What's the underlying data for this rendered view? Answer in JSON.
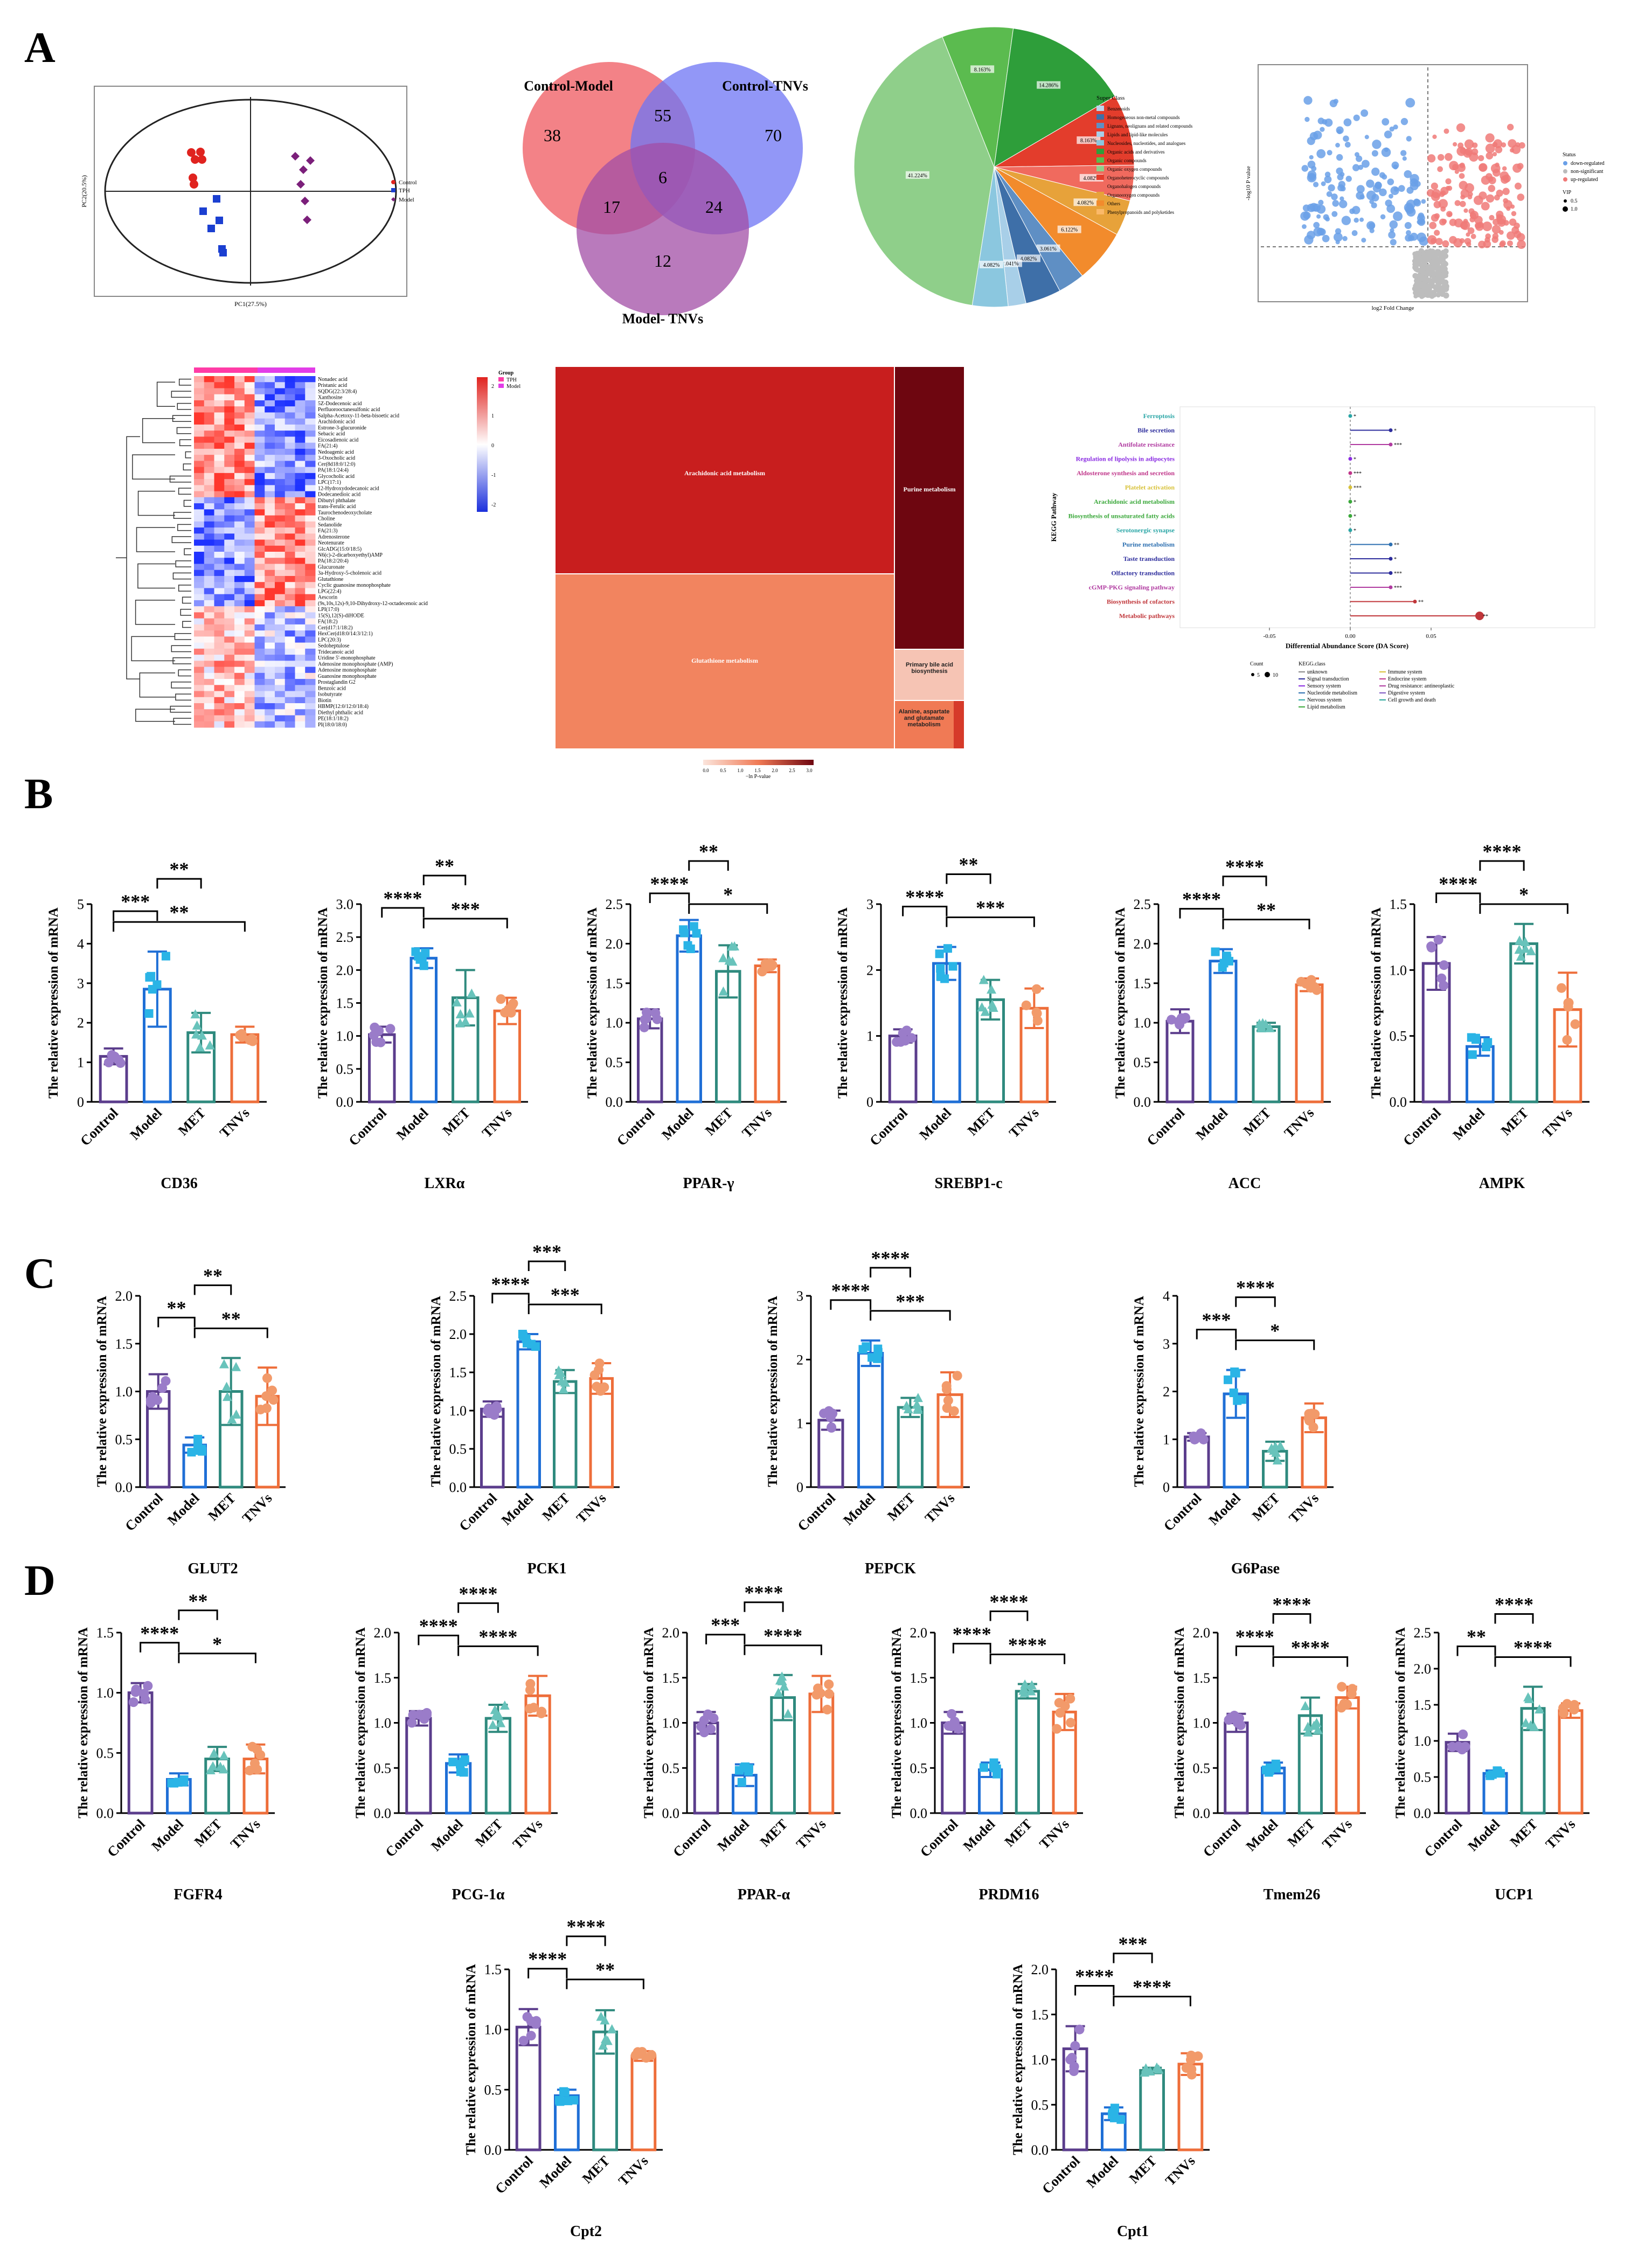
{
  "panel_letters": [
    "A",
    "B",
    "C",
    "D"
  ],
  "colors": {
    "Control": "#5b3d8c",
    "Model": "#1f6fd6",
    "MET": "#2f8a7e",
    "TNVs": "#ee6e3a",
    "Control_pt": "#9a7cc9",
    "Model_pt": "#2ab4e6",
    "MET_pt": "#68c3bb",
    "TNVs_pt": "#f29a6a"
  },
  "venn": {
    "labels": {
      "a": "Control-Model",
      "b": "Control-TNVs",
      "c": "Model- TNVs"
    },
    "counts": {
      "a_only": "38",
      "ab": "55",
      "b_only": "70",
      "ac": "17",
      "abc": "6",
      "bc": "24",
      "c_only": "12"
    }
  },
  "pca": {
    "xlabel": "PC1(27.5%)",
    "ylabel": "PC2(20.5%)",
    "legend": [
      "Control",
      "TPH",
      "Model"
    ]
  },
  "pie": {
    "legend_title": "Super Class",
    "labels": [
      "41.224%",
      "8.163%",
      "14.286%",
      "8.163%",
      "4.082%",
      "4.082%",
      "6.122%",
      "3.061%",
      "4.082%",
      "2.041%",
      "4.082%"
    ],
    "classes": [
      "Benzenoids",
      "Homogeneous non-metal compounds",
      "Lignans, neolignans and related compounds",
      "Lipids and lipid-like molecules",
      "Nucleosides, nucleotides, and analogues",
      "Organic acids and derivatives",
      "Organic compounds",
      "Organic oxygen compounds",
      "Organoheterocyclic compounds",
      "Organohalogen compounds",
      "Organooxygen compounds",
      "Others",
      "Phenylpropanoids and polyketides"
    ]
  },
  "volcano": {
    "xlabel": "log2 Fold Change",
    "ylabel": "-log10 P value",
    "legend_title": "Status",
    "legend": [
      "down-regulated",
      "non-significant",
      "up-regulated"
    ],
    "vip_title": "VIP",
    "vip": [
      "0.5",
      "1.0"
    ]
  },
  "heatmap": {
    "legend_title": "Group",
    "group_legend": [
      "TPH",
      "Model"
    ],
    "scale_ticks": [
      "2",
      "1",
      "0",
      "-1",
      "-2"
    ],
    "rows": [
      "Nonadec acid",
      "Pristanic acid",
      "SQDG(22:3/28:4)",
      "Xanthosine",
      "5Z-Dodecenoic acid",
      "Perfluorooctanesulfonic acid",
      "Salpha-Acetoxy-11-beta-bisoetic acid",
      "Arachidonic acid",
      "Estrone-3-glucuronide",
      "Sebacic acid",
      "Eicosadienoic acid",
      "FA(21:4)",
      "Nedoagenic acid",
      "3-Oxocholic acid",
      "Cer(8d18:0/12:0)",
      "PA(18:1/24:4)",
      "Glycocholic acid",
      "LPC(17:1)",
      "12-Hydroxydodecanoic acid",
      "Dodecanedioic acid",
      "Dibutyl phthalate",
      "trans-Ferulic acid",
      "Taurochenodeoxycholate",
      "Choline",
      "Sedanolide",
      "FA(21:3)",
      "Adrenosterone",
      "Neotenurate",
      "GlcADG(15:0/18:5)",
      "N6(c)-2-dicarboxyethyl)AMP",
      "PA(18:2/20:4)",
      "Glucuronate",
      "3a-Hydroxy-5-cholenoic acid",
      "Glutathione",
      "Cyclic guanosine monophosphate",
      "LPG(22:4)",
      "Aescorin",
      "(9s,10s,12s)-9,10-Dihydroxy-12-octadecenoic acid",
      "LPI(17:0)",
      "15(S),12(S)-diHODE",
      "FA(18:2)",
      "Cer(d17:1/18:2)",
      "HexCer(d18:0/14:3/12:1)",
      "LPC(20:3)",
      "Sedoheptulose",
      "Tridecanoic acid",
      "Uridine 5'-monophosphate",
      "Adenosine monophosphate (AMP)",
      "Adenosine monophosphate",
      "Guanosine monophosphate",
      "Prostaglandin G2",
      "Benzoic acid",
      "Isobutyrate",
      "Biotin",
      "HBMP(12:0/12:0/18:4)",
      "Diethyl phthalic acid",
      "PE(18:1/18:2)",
      "PI(18:0/18:0)"
    ]
  },
  "treemap": {
    "cells": [
      "Arachidonic acid metabolism",
      "Purine metabolism",
      "Glutathione metabolism",
      "Primary bile acid biosynthesis",
      "Alanine, aspartate and glutamate metabolism"
    ],
    "scale_ticks": [
      "0.0",
      "0.5",
      "1.0",
      "1.5",
      "2.0",
      "2.5",
      "3.0"
    ],
    "scale_label": "−ln P-value"
  },
  "kegg": {
    "ylabel": "KEGG Pathway",
    "xlabel": "Differential Abundance Score (DA Score)",
    "xticks": [
      "-0.05",
      "0.00",
      "0.05"
    ],
    "pathways": [
      {
        "name": "Ferroptosis",
        "color": "#2aa6a6",
        "da": 0.0,
        "sig": "*"
      },
      {
        "name": "Bile secretion",
        "color": "#2c2c9c",
        "da": 0.025,
        "sig": "*"
      },
      {
        "name": "Antifolate resistance",
        "color": "#b03aa0",
        "da": 0.025,
        "sig": "***"
      },
      {
        "name": "Regulation of lipolysis in adipocytes",
        "color": "#8a2be2",
        "da": 0.0,
        "sig": "*"
      },
      {
        "name": "Aldosterone synthesis and secretion",
        "color": "#c0368a",
        "da": 0.0,
        "sig": "***"
      },
      {
        "name": "Platelet activation",
        "color": "#d8c239",
        "da": 0.0,
        "sig": "***"
      },
      {
        "name": "Arachidonic acid metabolism",
        "color": "#3aa83a",
        "da": 0.0,
        "sig": "*"
      },
      {
        "name": "Biosynthesis of unsaturated fatty acids",
        "color": "#3aa83a",
        "da": 0.0,
        "sig": "*"
      },
      {
        "name": "Serotonergic synapse",
        "color": "#2aa6a6",
        "da": 0.0,
        "sig": "*"
      },
      {
        "name": "Purine metabolism",
        "color": "#2c6fb0",
        "da": 0.025,
        "sig": "**"
      },
      {
        "name": "Taste transduction",
        "color": "#2c2c9c",
        "da": 0.025,
        "sig": "*"
      },
      {
        "name": "Olfactory transduction",
        "color": "#2c2c9c",
        "da": 0.025,
        "sig": "***"
      },
      {
        "name": "cGMP-PKG signaling pathway",
        "color": "#b03aa0",
        "da": 0.025,
        "sig": "***"
      },
      {
        "name": "Biosynthesis of cofactors",
        "color": "#c0363a",
        "da": 0.04,
        "sig": "**"
      },
      {
        "name": "Metabolic pathways",
        "color": "#c0363a",
        "da": 0.08,
        "sig": "**"
      }
    ],
    "count_title": "Count",
    "count_values": [
      "5",
      "10"
    ],
    "class_title": "KEGG.class",
    "classes": [
      "unknown",
      "Signal transduction",
      "Sensory system",
      "Nucleotide metabolism",
      "Nervous system",
      "Lipid metabolism",
      "Immune system",
      "Endocrine system",
      "Drug resistance: antineoplastic",
      "Digestive system",
      "Cell growth and death"
    ]
  },
  "bar_ylabel": "The relative expression of mRNA",
  "chart_data": [
    {
      "type": "bar",
      "panel": "B",
      "title": "CD36",
      "categories": [
        "Control",
        "Model",
        "MET",
        "TNVs"
      ],
      "values": [
        1.15,
        2.85,
        1.75,
        1.7
      ],
      "errors": [
        0.2,
        0.95,
        0.5,
        0.2
      ],
      "ylim": [
        0,
        5
      ],
      "yticks": [
        0,
        1,
        2,
        3,
        4,
        5
      ],
      "sig": [
        {
          "a": 0,
          "b": 1,
          "label": "***"
        },
        {
          "a": 1,
          "b": 2,
          "label": "**"
        },
        {
          "a": 0,
          "b": 3,
          "label": "**"
        }
      ]
    },
    {
      "type": "bar",
      "panel": "B",
      "title": "LXRα",
      "categories": [
        "Control",
        "Model",
        "MET",
        "TNVs"
      ],
      "values": [
        1.02,
        2.18,
        1.58,
        1.38
      ],
      "errors": [
        0.12,
        0.15,
        0.42,
        0.2
      ],
      "ylim": [
        0,
        3.0
      ],
      "yticks": [
        0,
        0.5,
        1.0,
        1.5,
        2.0,
        2.5,
        3.0
      ],
      "sig": [
        {
          "a": 0,
          "b": 1,
          "label": "****"
        },
        {
          "a": 1,
          "b": 2,
          "label": "**"
        },
        {
          "a": 1,
          "b": 3,
          "label": "***"
        }
      ]
    },
    {
      "type": "bar",
      "panel": "B",
      "title": "PPAR-γ",
      "categories": [
        "Control",
        "Model",
        "MET",
        "TNVs"
      ],
      "values": [
        1.05,
        2.1,
        1.65,
        1.72
      ],
      "errors": [
        0.12,
        0.2,
        0.33,
        0.08
      ],
      "ylim": [
        0,
        2.5
      ],
      "yticks": [
        0,
        0.5,
        1.0,
        1.5,
        2.0,
        2.5
      ],
      "sig": [
        {
          "a": 0,
          "b": 1,
          "label": "****"
        },
        {
          "a": 1,
          "b": 2,
          "label": "**"
        },
        {
          "a": 1,
          "b": 3,
          "label": "*"
        }
      ]
    },
    {
      "type": "bar",
      "panel": "B",
      "title": "SREBP1-c",
      "categories": [
        "Control",
        "Model",
        "MET",
        "TNVs"
      ],
      "values": [
        1.0,
        2.1,
        1.55,
        1.42
      ],
      "errors": [
        0.1,
        0.25,
        0.3,
        0.3
      ],
      "ylim": [
        0,
        3
      ],
      "yticks": [
        0,
        1,
        2,
        3
      ],
      "sig": [
        {
          "a": 0,
          "b": 1,
          "label": "****"
        },
        {
          "a": 1,
          "b": 2,
          "label": "**"
        },
        {
          "a": 1,
          "b": 3,
          "label": "***"
        }
      ]
    },
    {
      "type": "bar",
      "panel": "B",
      "title": "ACC",
      "categories": [
        "Control",
        "Model",
        "MET",
        "TNVs"
      ],
      "values": [
        1.02,
        1.78,
        0.95,
        1.48
      ],
      "errors": [
        0.15,
        0.15,
        0.05,
        0.08
      ],
      "ylim": [
        0,
        2.5
      ],
      "yticks": [
        0,
        0.5,
        1.0,
        1.5,
        2.0,
        2.5
      ],
      "sig": [
        {
          "a": 0,
          "b": 1,
          "label": "****"
        },
        {
          "a": 1,
          "b": 2,
          "label": "****"
        },
        {
          "a": 1,
          "b": 3,
          "label": "**"
        }
      ]
    },
    {
      "type": "bar",
      "panel": "B",
      "title": "AMPK",
      "categories": [
        "Control",
        "Model",
        "MET",
        "TNVs"
      ],
      "values": [
        1.05,
        0.42,
        1.2,
        0.7
      ],
      "errors": [
        0.2,
        0.07,
        0.15,
        0.28
      ],
      "ylim": [
        0,
        1.5
      ],
      "yticks": [
        0,
        0.5,
        1.0,
        1.5
      ],
      "sig": [
        {
          "a": 0,
          "b": 1,
          "label": "****"
        },
        {
          "a": 1,
          "b": 2,
          "label": "****"
        },
        {
          "a": 1,
          "b": 3,
          "label": "*"
        }
      ]
    },
    {
      "type": "bar",
      "panel": "C",
      "title": "GLUT2",
      "categories": [
        "Control",
        "Model",
        "MET",
        "TNVs"
      ],
      "values": [
        1.0,
        0.44,
        1.0,
        0.95
      ],
      "errors": [
        0.18,
        0.08,
        0.35,
        0.3
      ],
      "ylim": [
        0,
        2.0
      ],
      "yticks": [
        0,
        0.5,
        1.0,
        1.5,
        2.0
      ],
      "sig": [
        {
          "a": 0,
          "b": 1,
          "label": "**"
        },
        {
          "a": 1,
          "b": 2,
          "label": "**"
        },
        {
          "a": 1,
          "b": 3,
          "label": "**"
        }
      ]
    },
    {
      "type": "bar",
      "panel": "C",
      "title": "PCK1",
      "categories": [
        "Control",
        "Model",
        "MET",
        "TNVs"
      ],
      "values": [
        1.02,
        1.9,
        1.38,
        1.42
      ],
      "errors": [
        0.1,
        0.1,
        0.15,
        0.2
      ],
      "ylim": [
        0,
        2.5
      ],
      "yticks": [
        0,
        0.5,
        1.0,
        1.5,
        2.0,
        2.5
      ],
      "sig": [
        {
          "a": 0,
          "b": 1,
          "label": "****"
        },
        {
          "a": 1,
          "b": 2,
          "label": "***"
        },
        {
          "a": 1,
          "b": 3,
          "label": "***"
        }
      ]
    },
    {
      "type": "bar",
      "panel": "C",
      "title": "PEPCK",
      "categories": [
        "Control",
        "Model",
        "MET",
        "TNVs"
      ],
      "values": [
        1.05,
        2.1,
        1.25,
        1.45
      ],
      "errors": [
        0.15,
        0.2,
        0.15,
        0.35
      ],
      "ylim": [
        0,
        3
      ],
      "yticks": [
        0,
        1,
        2,
        3
      ],
      "sig": [
        {
          "a": 0,
          "b": 1,
          "label": "****"
        },
        {
          "a": 1,
          "b": 2,
          "label": "****"
        },
        {
          "a": 1,
          "b": 3,
          "label": "***"
        }
      ]
    },
    {
      "type": "bar",
      "panel": "C",
      "title": "G6Pase",
      "categories": [
        "Control",
        "Model",
        "MET",
        "TNVs"
      ],
      "values": [
        1.05,
        1.95,
        0.75,
        1.45
      ],
      "errors": [
        0.08,
        0.5,
        0.2,
        0.3
      ],
      "ylim": [
        0,
        4
      ],
      "yticks": [
        0,
        1,
        2,
        3,
        4
      ],
      "sig": [
        {
          "a": 0,
          "b": 1,
          "label": "***"
        },
        {
          "a": 1,
          "b": 2,
          "label": "****"
        },
        {
          "a": 1,
          "b": 3,
          "label": "*"
        }
      ]
    },
    {
      "type": "bar",
      "panel": "D",
      "title": "FGFR4",
      "categories": [
        "Control",
        "Model",
        "MET",
        "TNVs"
      ],
      "values": [
        1.0,
        0.28,
        0.45,
        0.45
      ],
      "errors": [
        0.08,
        0.05,
        0.1,
        0.12
      ],
      "ylim": [
        0,
        1.5
      ],
      "yticks": [
        0,
        0.5,
        1.0,
        1.5
      ],
      "sig": [
        {
          "a": 0,
          "b": 1,
          "label": "****"
        },
        {
          "a": 1,
          "b": 2,
          "label": "**"
        },
        {
          "a": 1,
          "b": 3,
          "label": "*"
        }
      ]
    },
    {
      "type": "bar",
      "panel": "D",
      "title": "PCG-1α",
      "categories": [
        "Control",
        "Model",
        "MET",
        "TNVs"
      ],
      "values": [
        1.05,
        0.55,
        1.05,
        1.3
      ],
      "errors": [
        0.08,
        0.1,
        0.15,
        0.22
      ],
      "ylim": [
        0,
        2.0
      ],
      "yticks": [
        0,
        0.5,
        1.0,
        1.5,
        2.0
      ],
      "sig": [
        {
          "a": 0,
          "b": 1,
          "label": "****"
        },
        {
          "a": 1,
          "b": 2,
          "label": "****"
        },
        {
          "a": 1,
          "b": 3,
          "label": "****"
        }
      ]
    },
    {
      "type": "bar",
      "panel": "D",
      "title": "PPAR-α",
      "categories": [
        "Control",
        "Model",
        "MET",
        "TNVs"
      ],
      "values": [
        1.0,
        0.42,
        1.28,
        1.32
      ],
      "errors": [
        0.12,
        0.12,
        0.25,
        0.2
      ],
      "ylim": [
        0,
        2.0
      ],
      "yticks": [
        0,
        0.5,
        1.0,
        1.5,
        2.0
      ],
      "sig": [
        {
          "a": 0,
          "b": 1,
          "label": "***"
        },
        {
          "a": 1,
          "b": 2,
          "label": "****"
        },
        {
          "a": 1,
          "b": 3,
          "label": "****"
        }
      ]
    },
    {
      "type": "bar",
      "panel": "D",
      "title": "PRDM16",
      "categories": [
        "Control",
        "Model",
        "MET",
        "TNVs"
      ],
      "values": [
        1.0,
        0.48,
        1.35,
        1.12
      ],
      "errors": [
        0.12,
        0.08,
        0.08,
        0.2
      ],
      "ylim": [
        0,
        2.0
      ],
      "yticks": [
        0,
        0.5,
        1.0,
        1.5,
        2.0
      ],
      "sig": [
        {
          "a": 0,
          "b": 1,
          "label": "****"
        },
        {
          "a": 1,
          "b": 2,
          "label": "****"
        },
        {
          "a": 1,
          "b": 3,
          "label": "****"
        }
      ]
    },
    {
      "type": "bar",
      "panel": "D",
      "title": "Tmem26",
      "categories": [
        "Control",
        "Model",
        "MET",
        "TNVs"
      ],
      "values": [
        1.0,
        0.5,
        1.08,
        1.28
      ],
      "errors": [
        0.1,
        0.06,
        0.2,
        0.12
      ],
      "ylim": [
        0,
        2.0
      ],
      "yticks": [
        0,
        0.5,
        1.0,
        1.5,
        2.0
      ],
      "sig": [
        {
          "a": 0,
          "b": 1,
          "label": "****"
        },
        {
          "a": 1,
          "b": 2,
          "label": "****"
        },
        {
          "a": 1,
          "b": 3,
          "label": "****"
        }
      ]
    },
    {
      "type": "bar",
      "panel": "D",
      "title": "UCP1",
      "categories": [
        "Control",
        "Model",
        "MET",
        "TNVs"
      ],
      "values": [
        0.98,
        0.55,
        1.45,
        1.42
      ],
      "errors": [
        0.12,
        0.04,
        0.3,
        0.1
      ],
      "ylim": [
        0,
        2.5
      ],
      "yticks": [
        0,
        0.5,
        1.0,
        1.5,
        2.0,
        2.5
      ],
      "sig": [
        {
          "a": 0,
          "b": 1,
          "label": "**"
        },
        {
          "a": 1,
          "b": 2,
          "label": "****"
        },
        {
          "a": 1,
          "b": 3,
          "label": "****"
        }
      ]
    },
    {
      "type": "bar",
      "panel": "D",
      "title": "Cpt2",
      "categories": [
        "Control",
        "Model",
        "MET",
        "TNVs"
      ],
      "values": [
        1.02,
        0.45,
        0.98,
        0.78
      ],
      "errors": [
        0.15,
        0.05,
        0.18,
        0.04
      ],
      "ylim": [
        0,
        1.5
      ],
      "yticks": [
        0,
        0.5,
        1.0,
        1.5
      ],
      "sig": [
        {
          "a": 0,
          "b": 1,
          "label": "****"
        },
        {
          "a": 1,
          "b": 2,
          "label": "****"
        },
        {
          "a": 1,
          "b": 3,
          "label": "**"
        }
      ]
    },
    {
      "type": "bar",
      "panel": "D",
      "title": "Cpt1",
      "categories": [
        "Control",
        "Model",
        "MET",
        "TNVs"
      ],
      "values": [
        1.12,
        0.4,
        0.88,
        0.95
      ],
      "errors": [
        0.25,
        0.07,
        0.03,
        0.12
      ],
      "ylim": [
        0,
        2.0
      ],
      "yticks": [
        0,
        0.5,
        1.0,
        1.5,
        2.0
      ],
      "sig": [
        {
          "a": 0,
          "b": 1,
          "label": "****"
        },
        {
          "a": 1,
          "b": 2,
          "label": "***"
        },
        {
          "a": 1,
          "b": 3,
          "label": "****"
        }
      ]
    }
  ]
}
